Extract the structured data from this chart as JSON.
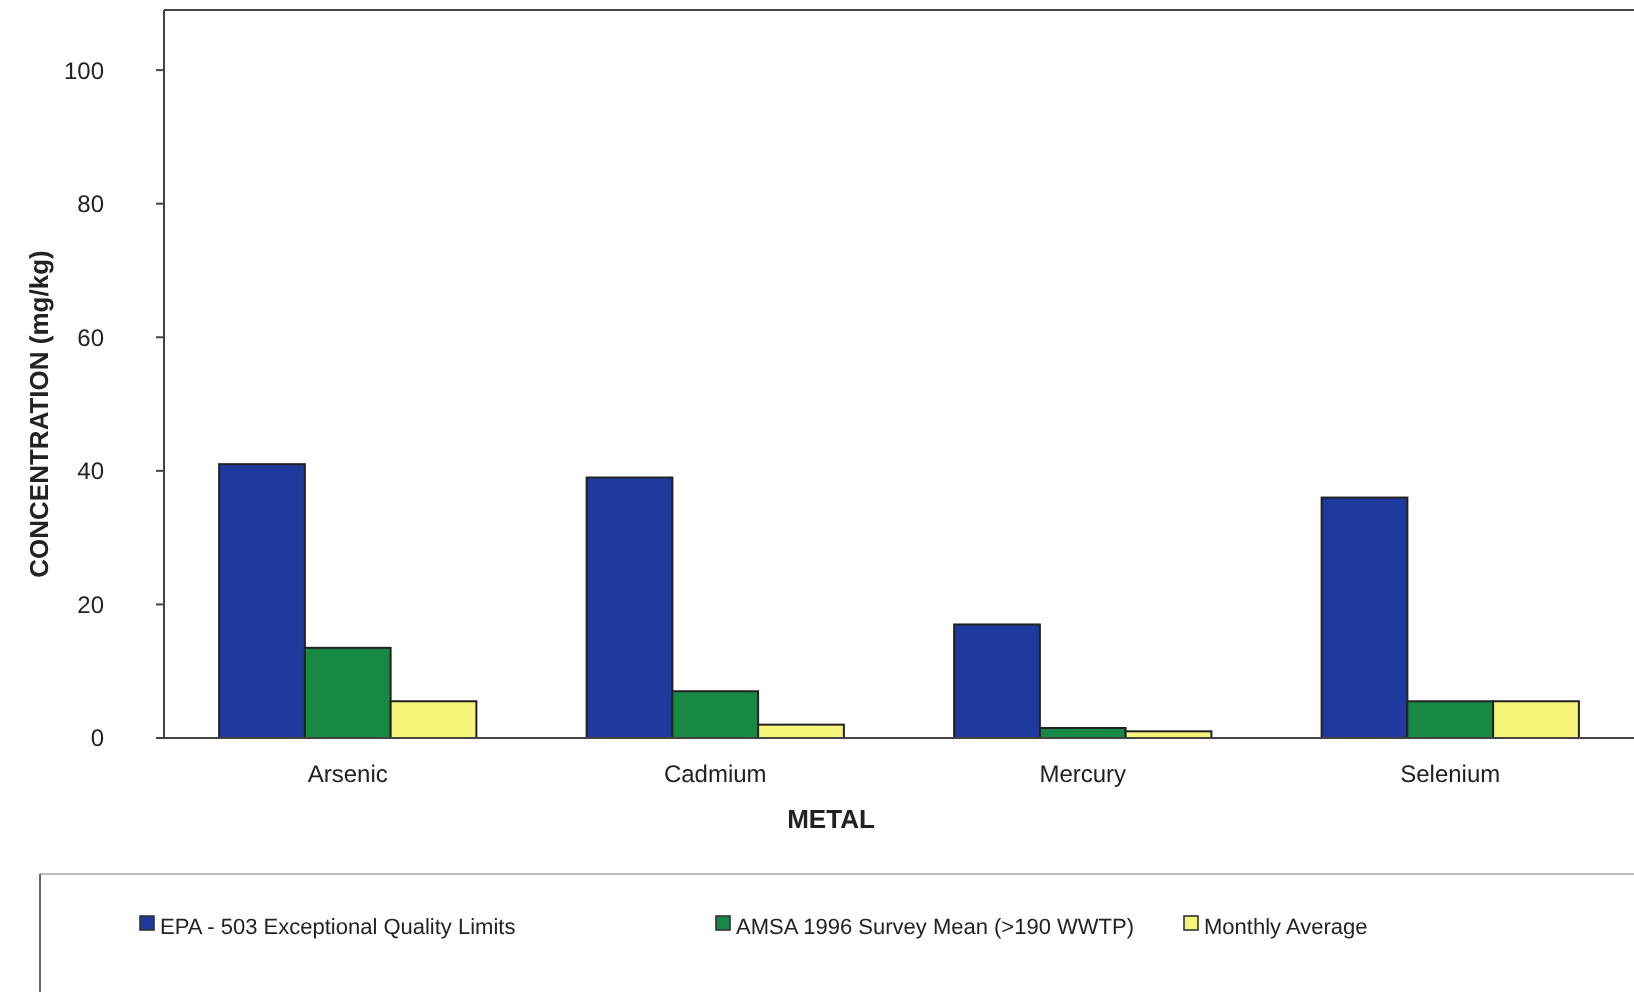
{
  "chart_data": {
    "type": "bar",
    "xlabel": "METAL",
    "ylabel": "CONCENTRATION (mg/kg)",
    "categories": [
      "Arsenic",
      "Cadmium",
      "Mercury",
      "Selenium"
    ],
    "series": [
      {
        "name": "EPA - 503 Exceptional Quality Limits",
        "color": "#1f3a9e",
        "values": [
          41,
          39,
          17,
          36
        ]
      },
      {
        "name": "AMSA 1996 Survey Mean (>190 WWTP)",
        "color": "#168a45",
        "values": [
          13.5,
          7,
          1.5,
          5.5
        ]
      },
      {
        "name": "Monthly Average",
        "color": "#f5f57a",
        "values": [
          5.5,
          2,
          1,
          5.5
        ]
      }
    ],
    "ylim": [
      0,
      109
    ],
    "yticks": [
      0,
      20,
      40,
      60,
      80,
      100
    ],
    "grid": false,
    "legend": "bottom"
  }
}
